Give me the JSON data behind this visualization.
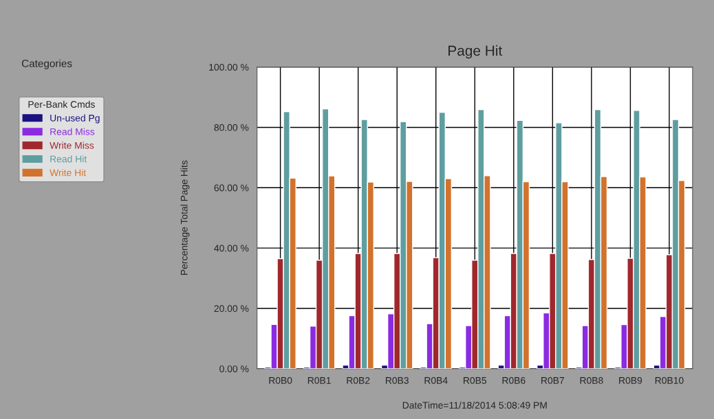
{
  "chart_data": {
    "type": "bar",
    "title": "Page Hit",
    "ylabel": "Percentage Total Page Hits",
    "categories": [
      "R0B0",
      "R0B1",
      "R0B2",
      "R0B3",
      "R0B4",
      "R0B5",
      "R0B6",
      "R0B7",
      "R0B8",
      "R0B9",
      "R0B10"
    ],
    "series": [
      {
        "name": "Un-used Pg",
        "color": "#1a1280",
        "values": [
          0.5,
          0.5,
          1.2,
          1.2,
          0.5,
          0.5,
          1.2,
          1.2,
          0.5,
          0.5,
          1.2
        ]
      },
      {
        "name": "Read Miss",
        "color": "#8a2be2",
        "values": [
          14.7,
          14.1,
          17.6,
          18.2,
          14.9,
          14.3,
          17.6,
          18.5,
          14.3,
          14.6,
          17.3
        ]
      },
      {
        "name": "Write Miss",
        "color": "#a0282d",
        "values": [
          36.5,
          36.0,
          38.2,
          38.2,
          36.8,
          36.0,
          38.2,
          38.2,
          36.2,
          36.6,
          37.8
        ]
      },
      {
        "name": "Read Hit",
        "color": "#5f9ea0",
        "values": [
          85.2,
          86.1,
          82.6,
          81.9,
          85.0,
          85.9,
          82.3,
          81.5,
          85.9,
          85.6,
          82.6
        ]
      },
      {
        "name": "Write Hit",
        "color": "#d2722d",
        "values": [
          63.2,
          63.9,
          61.9,
          62.1,
          63.0,
          64.0,
          62.0,
          62.0,
          63.7,
          63.6,
          62.4
        ]
      }
    ],
    "ylim": [
      0,
      100
    ],
    "yticks": [
      {
        "value": 0,
        "label": "0.00 %"
      },
      {
        "value": 20,
        "label": "20.00 %"
      },
      {
        "value": 40,
        "label": "40.00 %"
      },
      {
        "value": 60,
        "label": "60.00 %"
      },
      {
        "value": 80,
        "label": "80.00 %"
      },
      {
        "value": 100,
        "label": "100.00 %"
      }
    ],
    "grid": true,
    "legend": "left",
    "legend_title": "Per-Bank Cmds",
    "annotations": [
      "Categories",
      "DateTime=11/18/2014 5:08:49 PM"
    ]
  }
}
